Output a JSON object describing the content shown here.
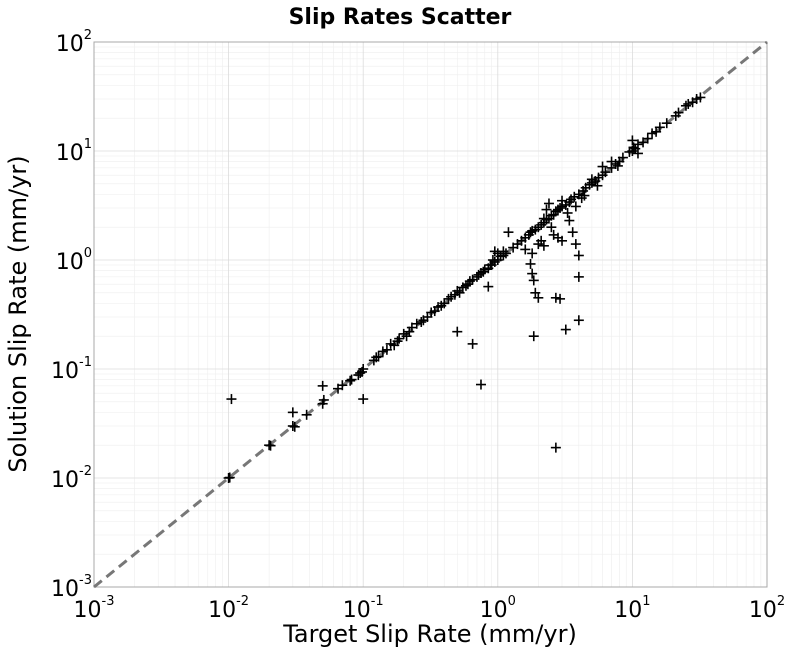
{
  "chart_data": {
    "type": "scatter",
    "title": "Slip Rates Scatter",
    "xlabel": "Target Slip Rate (mm/yr)",
    "ylabel": "Solution Slip Rate (mm/yr)",
    "xscale": "log",
    "yscale": "log",
    "xlim": [
      0.001,
      100
    ],
    "ylim": [
      0.001,
      100
    ],
    "x_ticks": [
      {
        "base": "10",
        "exp": "-3"
      },
      {
        "base": "10",
        "exp": "-2"
      },
      {
        "base": "10",
        "exp": "-1"
      },
      {
        "base": "10",
        "exp": "0"
      },
      {
        "base": "10",
        "exp": "1"
      },
      {
        "base": "10",
        "exp": "2"
      }
    ],
    "y_ticks": [
      {
        "base": "10",
        "exp": "-3"
      },
      {
        "base": "10",
        "exp": "-2"
      },
      {
        "base": "10",
        "exp": "-1"
      },
      {
        "base": "10",
        "exp": "0"
      },
      {
        "base": "10",
        "exp": "1"
      },
      {
        "base": "10",
        "exp": "2"
      }
    ],
    "grid": true,
    "marker": "+",
    "reference_line": {
      "style": "dashed",
      "color": "#777777",
      "from": [
        0.001,
        0.001
      ],
      "to": [
        100,
        100
      ]
    },
    "series": [
      {
        "points": [
          [
            0.01,
            0.01
          ],
          [
            0.0102,
            0.0101
          ],
          [
            0.0105,
            0.053
          ],
          [
            0.02,
            0.02
          ],
          [
            0.0205,
            0.0198
          ],
          [
            0.03,
            0.03
          ],
          [
            0.031,
            0.0295
          ],
          [
            0.03,
            0.04
          ],
          [
            0.038,
            0.038
          ],
          [
            0.05,
            0.048
          ],
          [
            0.051,
            0.052
          ],
          [
            0.05,
            0.07
          ],
          [
            0.065,
            0.066
          ],
          [
            0.07,
            0.071
          ],
          [
            0.08,
            0.078
          ],
          [
            0.082,
            0.08
          ],
          [
            0.1,
            0.053
          ],
          [
            0.095,
            0.092
          ],
          [
            0.1,
            0.1
          ],
          [
            0.092,
            0.088
          ],
          [
            0.098,
            0.094
          ],
          [
            0.12,
            0.12
          ],
          [
            0.125,
            0.128
          ],
          [
            0.13,
            0.13
          ],
          [
            0.14,
            0.145
          ],
          [
            0.15,
            0.15
          ],
          [
            0.16,
            0.17
          ],
          [
            0.17,
            0.165
          ],
          [
            0.18,
            0.18
          ],
          [
            0.185,
            0.19
          ],
          [
            0.2,
            0.21
          ],
          [
            0.21,
            0.2
          ],
          [
            0.22,
            0.22
          ],
          [
            0.23,
            0.24
          ],
          [
            0.25,
            0.26
          ],
          [
            0.27,
            0.27
          ],
          [
            0.28,
            0.28
          ],
          [
            0.3,
            0.3
          ],
          [
            0.32,
            0.33
          ],
          [
            0.34,
            0.34
          ],
          [
            0.36,
            0.37
          ],
          [
            0.38,
            0.38
          ],
          [
            0.4,
            0.4
          ],
          [
            0.43,
            0.44
          ],
          [
            0.45,
            0.46
          ],
          [
            0.48,
            0.48
          ],
          [
            0.5,
            0.52
          ],
          [
            0.52,
            0.5
          ],
          [
            0.55,
            0.56
          ],
          [
            0.58,
            0.58
          ],
          [
            0.6,
            0.6
          ],
          [
            0.62,
            0.64
          ],
          [
            0.65,
            0.66
          ],
          [
            0.7,
            0.7
          ],
          [
            0.72,
            0.73
          ],
          [
            0.75,
            0.76
          ],
          [
            0.78,
            0.78
          ],
          [
            0.8,
            0.82
          ],
          [
            0.85,
            0.84
          ],
          [
            0.88,
            0.9
          ],
          [
            0.9,
            0.9
          ],
          [
            0.95,
            0.96
          ],
          [
            1.0,
            1.0
          ],
          [
            1.05,
            1.08
          ],
          [
            1.1,
            1.1
          ],
          [
            1.15,
            1.15
          ],
          [
            1.0,
            1.15
          ],
          [
            0.95,
            1.2
          ],
          [
            1.1,
            1.2
          ],
          [
            0.92,
            1.0
          ],
          [
            0.5,
            0.22
          ],
          [
            0.65,
            0.17
          ],
          [
            0.75,
            0.072
          ],
          [
            0.85,
            0.57
          ],
          [
            1.3,
            1.3
          ],
          [
            1.4,
            1.4
          ],
          [
            1.5,
            1.5
          ],
          [
            1.6,
            1.6
          ],
          [
            1.7,
            1.7
          ],
          [
            1.75,
            1.8
          ],
          [
            1.8,
            1.85
          ],
          [
            1.9,
            1.9
          ],
          [
            2.0,
            2.0
          ],
          [
            2.1,
            2.1
          ],
          [
            2.2,
            2.2
          ],
          [
            2.3,
            2.35
          ],
          [
            2.4,
            2.4
          ],
          [
            2.5,
            2.55
          ],
          [
            2.6,
            2.6
          ],
          [
            2.7,
            2.8
          ],
          [
            2.8,
            2.9
          ],
          [
            2.9,
            3.0
          ],
          [
            3.0,
            3.1
          ],
          [
            3.2,
            3.2
          ],
          [
            3.4,
            3.4
          ],
          [
            3.5,
            3.6
          ],
          [
            3.7,
            3.8
          ],
          [
            4.0,
            4.0
          ],
          [
            4.3,
            4.3
          ],
          [
            4.5,
            4.6
          ],
          [
            4.8,
            4.9
          ],
          [
            5.0,
            5.1
          ],
          [
            5.3,
            5.3
          ],
          [
            5.6,
            5.7
          ],
          [
            6.0,
            6.0
          ],
          [
            6.3,
            6.4
          ],
          [
            7.0,
            7.0
          ],
          [
            7.5,
            7.6
          ],
          [
            8.0,
            8.0
          ],
          [
            8.5,
            8.7
          ],
          [
            1.2,
            1.8
          ],
          [
            1.6,
            1.25
          ],
          [
            1.8,
            1.15
          ],
          [
            1.75,
            0.92
          ],
          [
            1.8,
            0.75
          ],
          [
            1.85,
            0.65
          ],
          [
            1.9,
            0.5
          ],
          [
            2.0,
            0.45
          ],
          [
            1.85,
            0.2
          ],
          [
            2.0,
            1.4
          ],
          [
            2.1,
            1.5
          ],
          [
            2.2,
            1.35
          ],
          [
            2.2,
            2.4
          ],
          [
            2.3,
            2.9
          ],
          [
            2.4,
            3.3
          ],
          [
            2.5,
            2.0
          ],
          [
            2.6,
            1.7
          ],
          [
            2.7,
            0.45
          ],
          [
            2.7,
            0.019
          ],
          [
            2.8,
            1.6
          ],
          [
            2.9,
            0.44
          ],
          [
            3.0,
            3.5
          ],
          [
            3.0,
            1.5
          ],
          [
            3.2,
            0.23
          ],
          [
            3.3,
            2.7
          ],
          [
            3.4,
            2.3
          ],
          [
            3.6,
            1.8
          ],
          [
            3.8,
            1.4
          ],
          [
            4.0,
            0.7
          ],
          [
            4.0,
            1.1
          ],
          [
            4.0,
            0.28
          ],
          [
            3.8,
            3.1
          ],
          [
            4.2,
            3.7
          ],
          [
            4.4,
            3.9
          ],
          [
            5.0,
            5.5
          ],
          [
            5.5,
            4.8
          ],
          [
            6.0,
            7.2
          ],
          [
            7.0,
            8.0
          ],
          [
            7.8,
            7.3
          ],
          [
            9.5,
            9.8
          ],
          [
            10.0,
            10.0
          ],
          [
            10.5,
            10.5
          ],
          [
            11.0,
            11.5
          ],
          [
            12.0,
            12.0
          ],
          [
            13.0,
            13.0
          ],
          [
            14.0,
            14.5
          ],
          [
            15.0,
            15.0
          ],
          [
            16.0,
            16.5
          ],
          [
            18.0,
            18.0
          ],
          [
            10.0,
            12.5
          ],
          [
            11.0,
            9.5
          ],
          [
            10.2,
            10.8
          ],
          [
            21.0,
            21.0
          ],
          [
            22.0,
            22.5
          ],
          [
            25.0,
            26.0
          ],
          [
            26.0,
            27.0
          ],
          [
            28.0,
            28.0
          ],
          [
            30.0,
            30.0
          ],
          [
            32.0,
            31.0
          ]
        ]
      }
    ]
  }
}
